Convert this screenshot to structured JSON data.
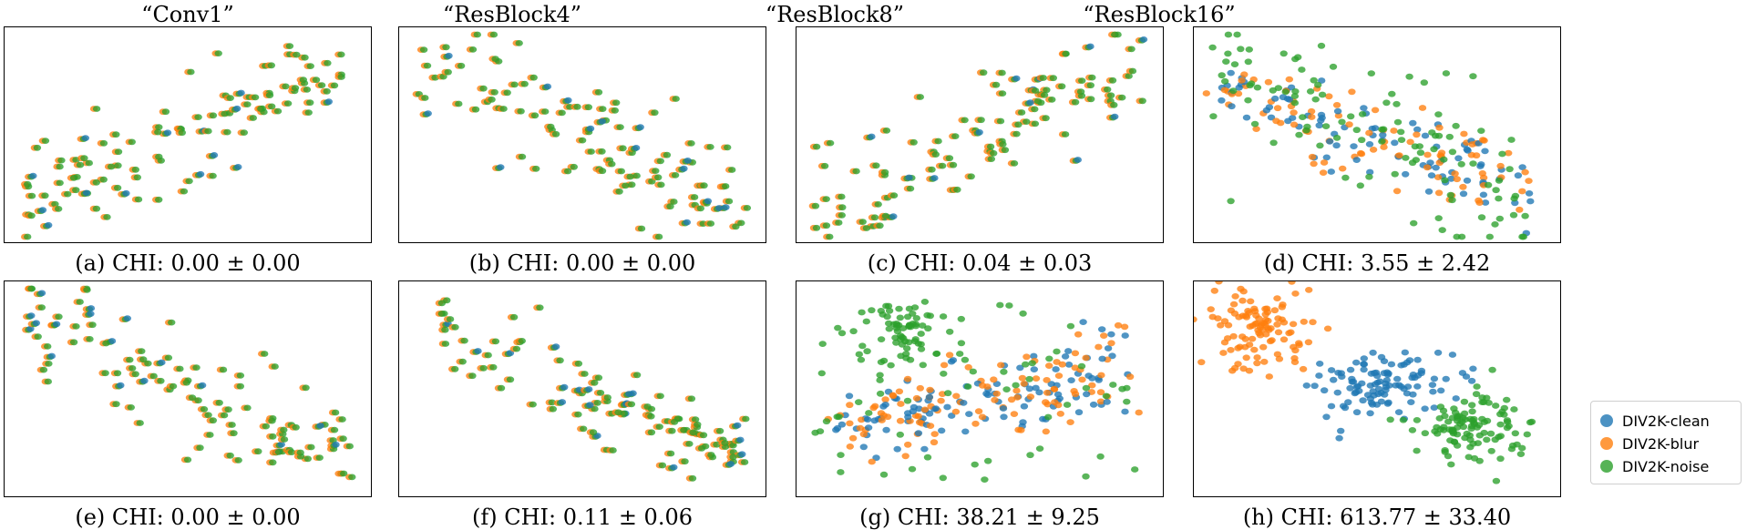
{
  "chart_data": [
    {
      "type": "scatter",
      "title": "“Conv1”",
      "caption_label": "(a) CHI:",
      "caption_value": "0.00 ± 0.00",
      "pattern": "mixed-diagonal-down",
      "x": [],
      "y": []
    },
    {
      "type": "scatter",
      "title": "“ResBlock4”",
      "caption_label": "(b) CHI:",
      "caption_value": "0.00 ± 0.00",
      "pattern": "mixed-diagonal-up",
      "x": [],
      "y": []
    },
    {
      "type": "scatter",
      "title": "“ResBlock8”",
      "caption_label": "(c) CHI:",
      "caption_value": "0.04 ± 0.03",
      "pattern": "mixed-diagonal-down",
      "x": [],
      "y": []
    },
    {
      "type": "scatter",
      "title": "“ResBlock16”",
      "caption_label": "(d) CHI:",
      "caption_value": "3.55 ± 2.42",
      "pattern": "partial-separation",
      "x": [],
      "y": []
    },
    {
      "type": "scatter",
      "title": "",
      "caption_label": "(e) CHI:",
      "caption_value": "0.00 ± 0.00",
      "pattern": "mixed-diagonal-up",
      "x": [],
      "y": []
    },
    {
      "type": "scatter",
      "title": "",
      "caption_label": "(f) CHI:",
      "caption_value": "0.11 ± 0.06",
      "pattern": "mixed-diagonal-up",
      "x": [],
      "y": []
    },
    {
      "type": "scatter",
      "title": "",
      "caption_label": "(g) CHI:",
      "caption_value": "38.21 ± 9.25",
      "pattern": "noise-cluster-top-left",
      "x": [],
      "y": []
    },
    {
      "type": "scatter",
      "title": "",
      "caption_label": "(h) CHI:",
      "caption_value": "613.77 ± 33.40",
      "pattern": "three-clusters",
      "x": [],
      "y": []
    }
  ],
  "legend": {
    "items": [
      {
        "label": "DIV2K-clean",
        "color": "#1f77b4"
      },
      {
        "label": "DIV2K-blur",
        "color": "#ff7f0e"
      },
      {
        "label": "DIV2K-noise",
        "color": "#2ca02c"
      }
    ]
  }
}
